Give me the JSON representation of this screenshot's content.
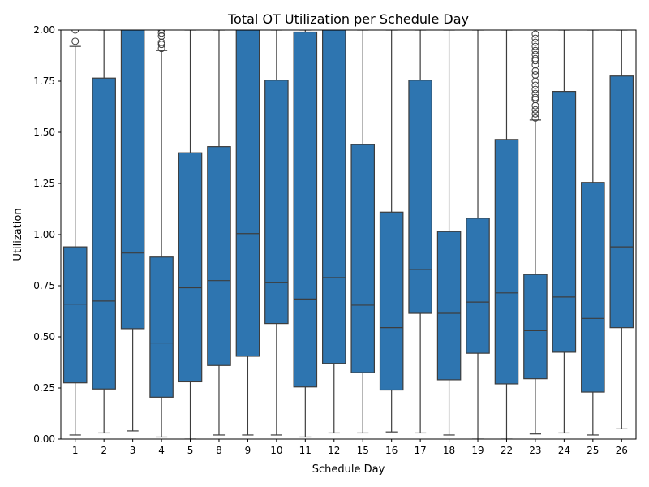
{
  "chart_data": {
    "type": "boxplot",
    "title": "Total OT Utilization per Schedule Day",
    "xlabel": "Schedule Day",
    "ylabel": "Utilization",
    "ylim": [
      0,
      2.0
    ],
    "yticks": [
      "0.00",
      "0.25",
      "0.50",
      "0.75",
      "1.00",
      "1.25",
      "1.50",
      "1.75",
      "2.00"
    ],
    "ytick_values": [
      0,
      0.25,
      0.5,
      0.75,
      1.0,
      1.25,
      1.5,
      1.75,
      2.0
    ],
    "color": "#2e75b0",
    "edge_color": "#3d3d3d",
    "categories": [
      "1",
      "2",
      "3",
      "4",
      "5",
      "8",
      "9",
      "10",
      "11",
      "12",
      "15",
      "16",
      "17",
      "18",
      "19",
      "22",
      "23",
      "24",
      "25",
      "26"
    ],
    "boxes": [
      {
        "day": "1",
        "whislo": 0.02,
        "q1": 0.275,
        "med": 0.66,
        "q3": 0.94,
        "whishi": 1.92,
        "fliers": [
          1.945,
          2.0
        ]
      },
      {
        "day": "2",
        "whislo": 0.03,
        "q1": 0.245,
        "med": 0.675,
        "q3": 1.765,
        "whishi": 2.0,
        "fliers": []
      },
      {
        "day": "3",
        "whislo": 0.04,
        "q1": 0.54,
        "med": 0.91,
        "q3": 2.0,
        "whishi": 2.0,
        "fliers": []
      },
      {
        "day": "4",
        "whislo": 0.01,
        "q1": 0.205,
        "med": 0.47,
        "q3": 0.89,
        "whishi": 1.9,
        "fliers": [
          1.91,
          1.93,
          1.94,
          1.97,
          1.985,
          2.0
        ]
      },
      {
        "day": "5",
        "whislo": 0.0,
        "q1": 0.28,
        "med": 0.74,
        "q3": 1.4,
        "whishi": 2.0,
        "fliers": []
      },
      {
        "day": "8",
        "whislo": 0.02,
        "q1": 0.36,
        "med": 0.775,
        "q3": 1.43,
        "whishi": 2.0,
        "fliers": []
      },
      {
        "day": "9",
        "whislo": 0.02,
        "q1": 0.405,
        "med": 1.005,
        "q3": 2.0,
        "whishi": 2.0,
        "fliers": []
      },
      {
        "day": "10",
        "whislo": 0.02,
        "q1": 0.565,
        "med": 0.765,
        "q3": 1.755,
        "whishi": 2.0,
        "fliers": []
      },
      {
        "day": "11",
        "whislo": 0.01,
        "q1": 0.255,
        "med": 0.685,
        "q3": 1.99,
        "whishi": 2.0,
        "fliers": []
      },
      {
        "day": "12",
        "whislo": 0.03,
        "q1": 0.37,
        "med": 0.79,
        "q3": 2.0,
        "whishi": 2.0,
        "fliers": []
      },
      {
        "day": "15",
        "whislo": 0.03,
        "q1": 0.325,
        "med": 0.655,
        "q3": 1.44,
        "whishi": 2.0,
        "fliers": []
      },
      {
        "day": "16",
        "whislo": 0.035,
        "q1": 0.24,
        "med": 0.545,
        "q3": 1.11,
        "whishi": 2.0,
        "fliers": []
      },
      {
        "day": "17",
        "whislo": 0.03,
        "q1": 0.615,
        "med": 0.83,
        "q3": 1.755,
        "whishi": 2.0,
        "fliers": []
      },
      {
        "day": "18",
        "whislo": 0.02,
        "q1": 0.29,
        "med": 0.615,
        "q3": 1.015,
        "whishi": 2.0,
        "fliers": []
      },
      {
        "day": "19",
        "whislo": 0.0,
        "q1": 0.42,
        "med": 0.67,
        "q3": 1.08,
        "whishi": 2.0,
        "fliers": []
      },
      {
        "day": "22",
        "whislo": 0.0,
        "q1": 0.27,
        "med": 0.715,
        "q3": 1.465,
        "whishi": 2.0,
        "fliers": []
      },
      {
        "day": "23",
        "whislo": 0.025,
        "q1": 0.295,
        "med": 0.53,
        "q3": 0.805,
        "whishi": 1.56,
        "fliers": [
          1.57,
          1.59,
          1.61,
          1.63,
          1.66,
          1.67,
          1.69,
          1.71,
          1.73,
          1.75,
          1.78,
          1.8,
          1.83,
          1.85,
          1.86,
          1.88,
          1.9,
          1.92,
          1.94,
          1.96,
          1.98
        ]
      },
      {
        "day": "24",
        "whislo": 0.03,
        "q1": 0.425,
        "med": 0.695,
        "q3": 1.7,
        "whishi": 2.0,
        "fliers": []
      },
      {
        "day": "25",
        "whislo": 0.02,
        "q1": 0.23,
        "med": 0.59,
        "q3": 1.255,
        "whishi": 2.0,
        "fliers": []
      },
      {
        "day": "26",
        "whislo": 0.05,
        "q1": 0.545,
        "med": 0.94,
        "q3": 1.775,
        "whishi": 2.0,
        "fliers": []
      }
    ]
  }
}
